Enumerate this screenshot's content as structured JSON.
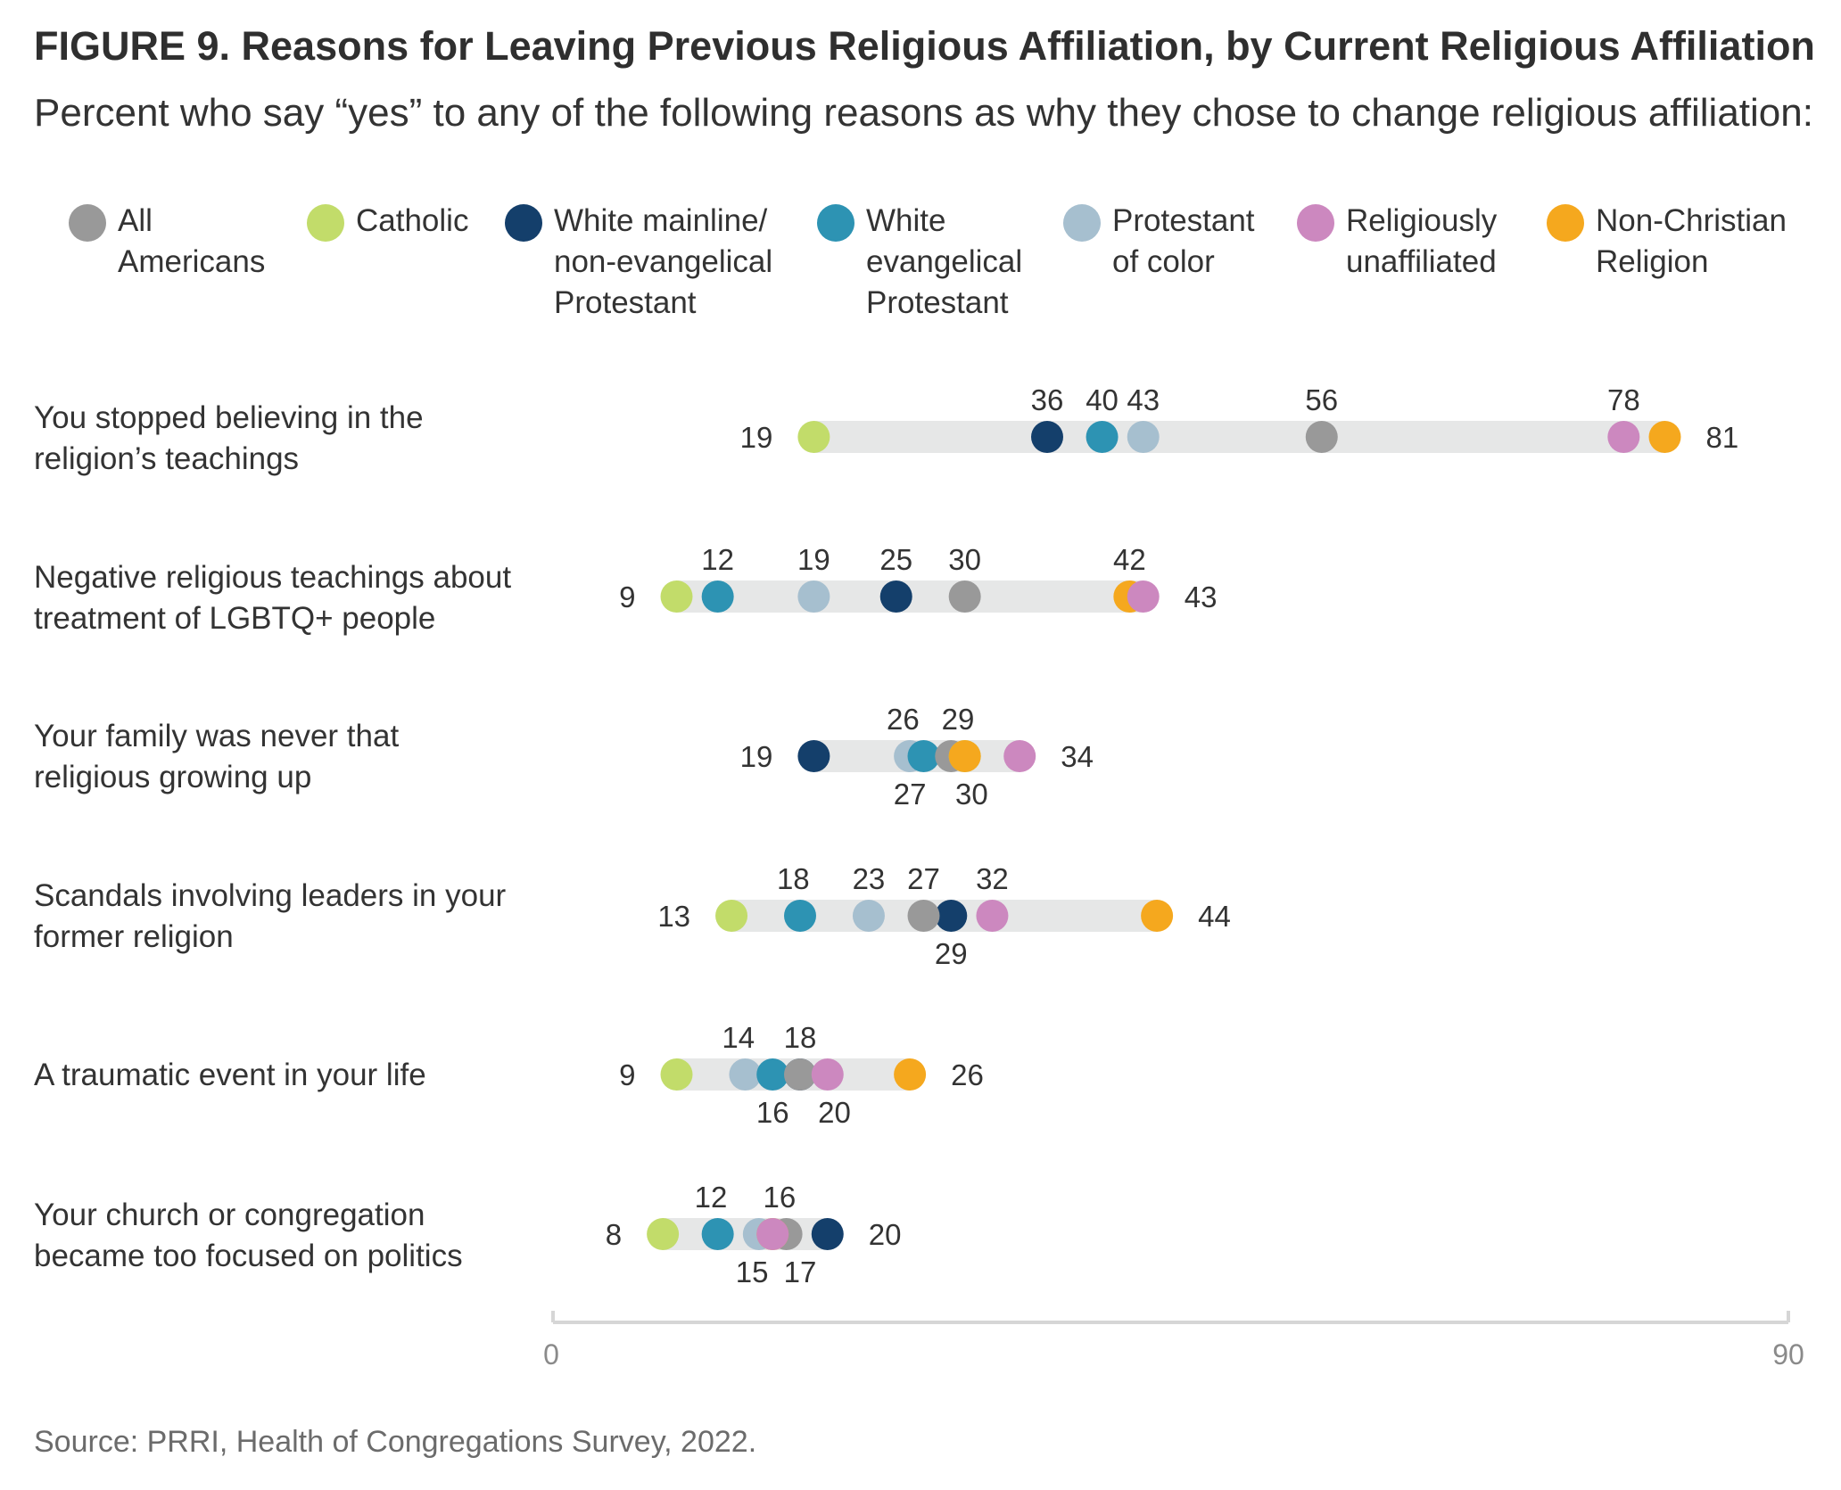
{
  "title": "FIGURE 9.  Reasons for Leaving Previous Religious Affiliation, by Current Religious Affiliation",
  "subtitle": "Percent who say “yes” to any of the following reasons as why they chose to change religious affiliation:",
  "source": "Source: PRRI, Health of Congregations Survey, 2022.",
  "legend": [
    {
      "label": "All\nAmericans",
      "color": "#999999"
    },
    {
      "label": "Catholic",
      "color": "#c2dc6a"
    },
    {
      "label": "White mainline/\nnon-evangelical\nProtestant",
      "color": "#143f6b"
    },
    {
      "label": "White\nevangelical\nProtestant",
      "color": "#2d93b3"
    },
    {
      "label": "Protestant\nof color",
      "color": "#a6bfcf"
    },
    {
      "label": "Religiously\nunaffiliated",
      "color": "#cc88bf"
    },
    {
      "label": "Non-Christian\nReligion",
      "color": "#f5a81e"
    }
  ],
  "chart_data": {
    "type": "dot_range",
    "title": "FIGURE 9.  Reasons for Leaving Previous Religious Affiliation, by Current Religious Affiliation",
    "subtitle": "Percent who say “yes” to any of the following reasons as why they chose to change religious affiliation:",
    "xlim": [
      0,
      90
    ],
    "x_tick_labels": [
      "0",
      "90"
    ],
    "legend_placement": "top",
    "grid": false,
    "series": [
      {
        "name": "All Americans",
        "values": [
          56,
          30,
          29,
          27,
          18,
          17
        ]
      },
      {
        "name": "Catholic",
        "values": [
          19,
          9,
          30,
          13,
          9,
          8
        ]
      },
      {
        "name": "White mainline/ non-evangelical Protestant",
        "values": [
          36,
          25,
          19,
          29,
          18,
          20
        ]
      },
      {
        "name": "White evangelical Protestant",
        "values": [
          40,
          12,
          27,
          18,
          16,
          12
        ]
      },
      {
        "name": "Protestant of color",
        "values": [
          43,
          19,
          26,
          23,
          14,
          15
        ]
      },
      {
        "name": "Religiously unaffiliated",
        "values": [
          78,
          43,
          34,
          32,
          20,
          16
        ]
      },
      {
        "name": "Non-Christian Religion",
        "values": [
          81,
          42,
          30,
          44,
          26,
          16
        ]
      }
    ],
    "categories": [
      {
        "label": "You stopped believing in the\nreligion’s teachings",
        "labels": [
          {
            "text": "19",
            "pos": "left"
          },
          {
            "text": "81",
            "pos": "right"
          },
          {
            "text": "36",
            "pos": "above",
            "at": 36
          },
          {
            "text": "40",
            "pos": "above",
            "at": 40
          },
          {
            "text": "43",
            "pos": "above",
            "at": 43
          },
          {
            "text": "56",
            "pos": "above",
            "at": 56
          },
          {
            "text": "78",
            "pos": "above",
            "at": 78
          }
        ]
      },
      {
        "label": "Negative religious teachings about\ntreatment of LGBTQ+ people",
        "labels": [
          {
            "text": "9",
            "pos": "left"
          },
          {
            "text": "43",
            "pos": "right"
          },
          {
            "text": "12",
            "pos": "above",
            "at": 12
          },
          {
            "text": "19",
            "pos": "above",
            "at": 19
          },
          {
            "text": "25",
            "pos": "above",
            "at": 25
          },
          {
            "text": "30",
            "pos": "above",
            "at": 30
          },
          {
            "text": "42",
            "pos": "above",
            "at": 42
          }
        ]
      },
      {
        "label": "Your family was never that\nreligious growing up",
        "labels": [
          {
            "text": "19",
            "pos": "left"
          },
          {
            "text": "34",
            "pos": "right"
          },
          {
            "text": "26",
            "pos": "above",
            "at": 25.5
          },
          {
            "text": "29",
            "pos": "above",
            "at": 29.5
          },
          {
            "text": "27",
            "pos": "below",
            "at": 26
          },
          {
            "text": "30",
            "pos": "below",
            "at": 30.5
          }
        ]
      },
      {
        "label": "Scandals involving leaders in your\nformer religion",
        "labels": [
          {
            "text": "13",
            "pos": "left"
          },
          {
            "text": "44",
            "pos": "right"
          },
          {
            "text": "18",
            "pos": "above",
            "at": 17.5
          },
          {
            "text": "23",
            "pos": "above",
            "at": 23
          },
          {
            "text": "27",
            "pos": "above",
            "at": 27
          },
          {
            "text": "32",
            "pos": "above",
            "at": 32
          },
          {
            "text": "29",
            "pos": "below",
            "at": 29
          }
        ]
      },
      {
        "label": "A traumatic event in your life",
        "labels": [
          {
            "text": "9",
            "pos": "left"
          },
          {
            "text": "26",
            "pos": "right"
          },
          {
            "text": "14",
            "pos": "above",
            "at": 13.5
          },
          {
            "text": "18",
            "pos": "above",
            "at": 18
          },
          {
            "text": "16",
            "pos": "below",
            "at": 16
          },
          {
            "text": "20",
            "pos": "below",
            "at": 20.5
          }
        ]
      },
      {
        "label": "Your church or congregation\nbecame too focused on politics",
        "labels": [
          {
            "text": "8",
            "pos": "left"
          },
          {
            "text": "20",
            "pos": "right"
          },
          {
            "text": "12",
            "pos": "above",
            "at": 11.5
          },
          {
            "text": "16",
            "pos": "above",
            "at": 16.5
          },
          {
            "text": "15",
            "pos": "below",
            "at": 14.5
          },
          {
            "text": "17",
            "pos": "below",
            "at": 18
          }
        ]
      }
    ]
  }
}
